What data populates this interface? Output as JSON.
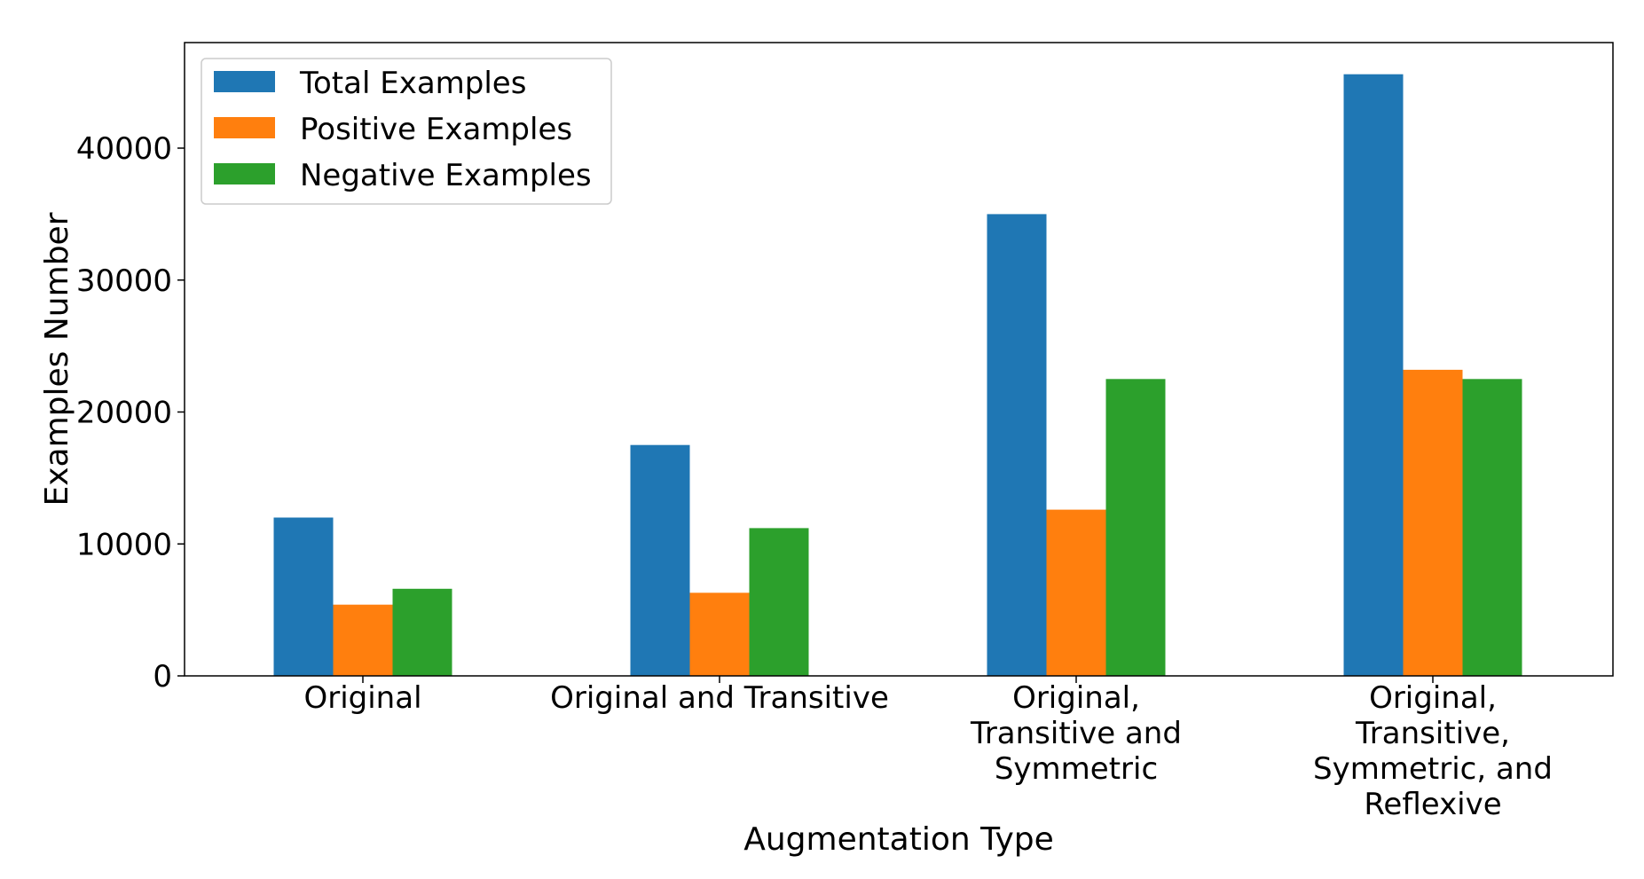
{
  "chart_data": {
    "type": "bar",
    "title": "",
    "xlabel": "Augmentation Type",
    "ylabel": "Examples Number",
    "ylim": [
      0,
      48000
    ],
    "yticks": [
      0,
      10000,
      20000,
      30000,
      40000
    ],
    "grid": false,
    "legend_position": "top-left",
    "categories": [
      [
        "Original"
      ],
      [
        "Original and Transitive"
      ],
      [
        "Original,",
        "Transitive and",
        "Symmetric"
      ],
      [
        "Original,",
        "Transitive,",
        "Symmetric, and",
        "Reflexive"
      ]
    ],
    "series": [
      {
        "name": "Total Examples",
        "color": "#1f77b4",
        "values": [
          12000,
          17500,
          35000,
          45600
        ]
      },
      {
        "name": "Positive Examples",
        "color": "#ff7f0e",
        "values": [
          5400,
          6300,
          12600,
          23200
        ]
      },
      {
        "name": "Negative Examples",
        "color": "#2ca02c",
        "values": [
          6600,
          11200,
          22500,
          22500
        ]
      }
    ]
  }
}
